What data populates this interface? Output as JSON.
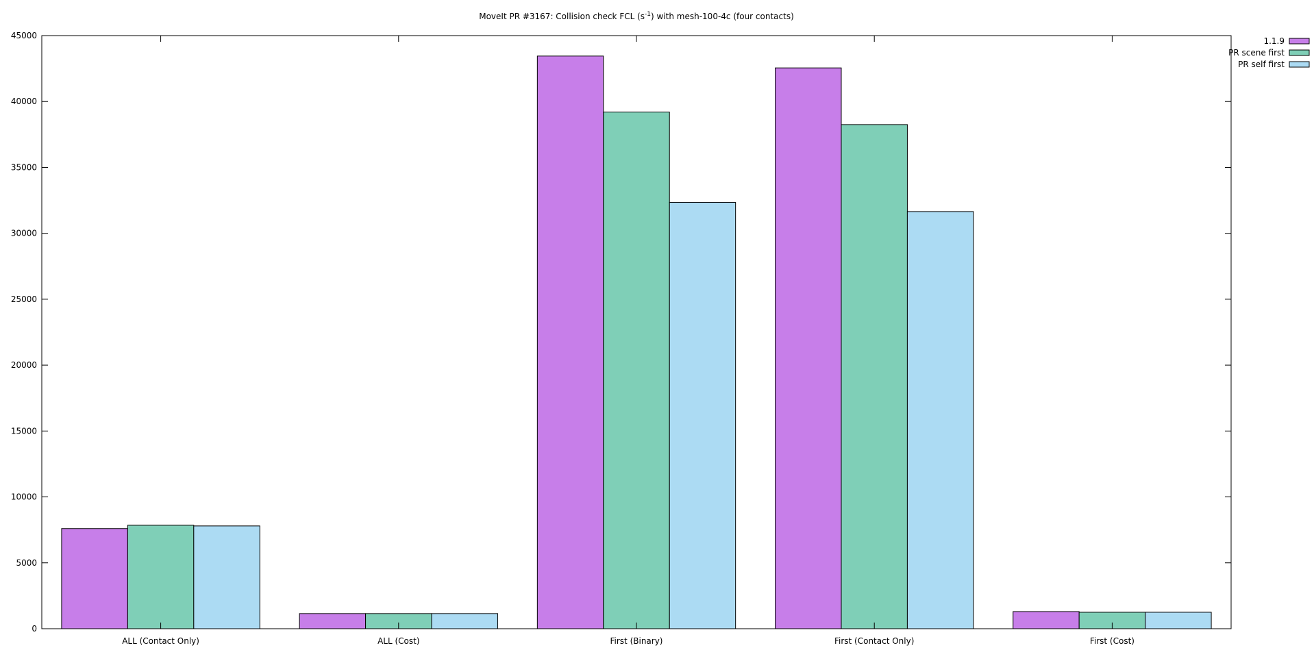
{
  "chart_data": {
    "type": "bar",
    "title": {
      "prefix": "MoveIt PR #3167: Collision check FCL (s",
      "superscript": "-1",
      "suffix": ") with mesh-100-4c (four contacts)"
    },
    "xlabel": "",
    "ylabel": "",
    "ylim": [
      0,
      45000
    ],
    "yticks": [
      0,
      5000,
      10000,
      15000,
      20000,
      25000,
      30000,
      35000,
      40000,
      45000
    ],
    "categories": [
      "ALL (Contact Only)",
      "ALL (Cost)",
      "First (Binary)",
      "First (Contact Only)",
      "First (Cost)"
    ],
    "series": [
      {
        "name": "1.1.9",
        "color": "#c77ee9",
        "values": [
          7600,
          1150,
          43450,
          42550,
          1300
        ]
      },
      {
        "name": "PR scene first",
        "color": "#7fcfb7",
        "values": [
          7850,
          1150,
          39200,
          38250,
          1250
        ]
      },
      {
        "name": "PR self first",
        "color": "#acdbf3",
        "values": [
          7800,
          1150,
          32350,
          31650,
          1250
        ]
      }
    ],
    "grid": false,
    "legend_position": "top-right"
  }
}
